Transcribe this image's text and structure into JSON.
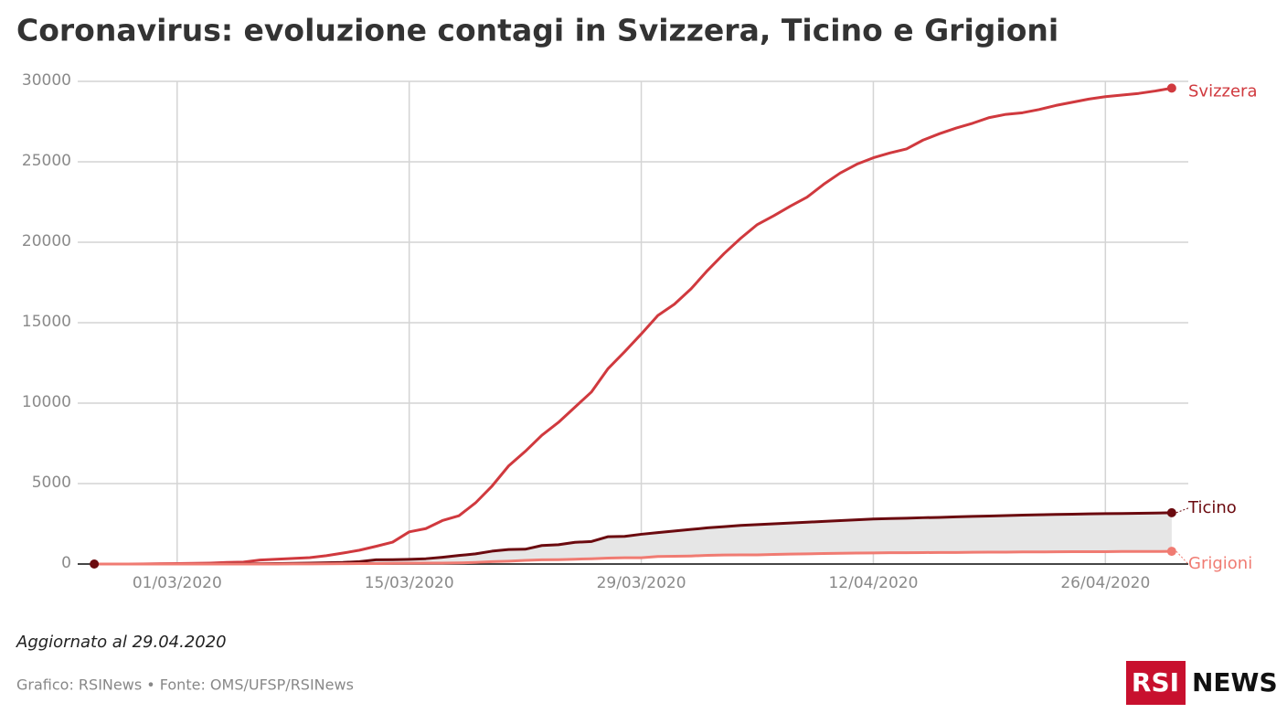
{
  "chart_data": {
    "type": "line",
    "title": "Coronavirus: evoluzione contagi in Svizzera, Ticino e Grigioni",
    "note": "Aggiornato al 29.04.2020",
    "source": "Grafico: RSINews • Fonte: OMS/UFSP/RSINews",
    "logo": [
      "RSI",
      "NEWS"
    ],
    "x": [
      "25/02/2020",
      "26/02/2020",
      "27/02/2020",
      "28/02/2020",
      "29/02/2020",
      "01/03/2020",
      "02/03/2020",
      "03/03/2020",
      "04/03/2020",
      "05/03/2020",
      "06/03/2020",
      "07/03/2020",
      "08/03/2020",
      "09/03/2020",
      "10/03/2020",
      "11/03/2020",
      "12/03/2020",
      "13/03/2020",
      "14/03/2020",
      "15/03/2020",
      "16/03/2020",
      "17/03/2020",
      "18/03/2020",
      "19/03/2020",
      "20/03/2020",
      "21/03/2020",
      "22/03/2020",
      "23/03/2020",
      "24/03/2020",
      "25/03/2020",
      "26/03/2020",
      "27/03/2020",
      "28/03/2020",
      "29/03/2020",
      "30/03/2020",
      "31/03/2020",
      "01/04/2020",
      "02/04/2020",
      "03/04/2020",
      "04/04/2020",
      "05/04/2020",
      "06/04/2020",
      "07/04/2020",
      "08/04/2020",
      "09/04/2020",
      "10/04/2020",
      "11/04/2020",
      "12/04/2020",
      "13/04/2020",
      "14/04/2020",
      "15/04/2020",
      "16/04/2020",
      "17/04/2020",
      "18/04/2020",
      "19/04/2020",
      "20/04/2020",
      "21/04/2020",
      "22/04/2020",
      "23/04/2020",
      "24/04/2020",
      "25/04/2020",
      "26/04/2020",
      "27/04/2020",
      "28/04/2020",
      "29/04/2020",
      "30/04/2020"
    ],
    "series": [
      {
        "name": "Svizzera",
        "color": "#d0393e",
        "values": [
          0,
          0,
          0,
          10,
          20,
          30,
          40,
          60,
          100,
          120,
          250,
          300,
          350,
          400,
          520,
          680,
          860,
          1100,
          1360,
          2000,
          2200,
          2700,
          3000,
          3800,
          4850,
          6100,
          7000,
          8000,
          8800,
          9750,
          10700,
          12150,
          13200,
          14300,
          15450,
          16150,
          17100,
          18250,
          19300,
          20250,
          21100,
          21650,
          22250,
          22800,
          23600,
          24300,
          24850,
          25250,
          25550,
          25800,
          26350,
          26750,
          27100,
          27400,
          27750,
          27950,
          28050,
          28250,
          28500,
          28700,
          28900,
          29050,
          29150,
          29250,
          29400,
          29580
        ]
      },
      {
        "name": "Ticino",
        "color": "#6b0a0f",
        "values": [
          0,
          0,
          0,
          1,
          1,
          1,
          1,
          5,
          10,
          15,
          20,
          30,
          40,
          60,
          80,
          100,
          150,
          260,
          270,
          290,
          330,
          420,
          530,
          630,
          800,
          900,
          920,
          1150,
          1200,
          1350,
          1400,
          1700,
          1720,
          1850,
          1950,
          2050,
          2150,
          2250,
          2320,
          2400,
          2450,
          2500,
          2550,
          2600,
          2650,
          2700,
          2750,
          2800,
          2830,
          2850,
          2880,
          2900,
          2930,
          2960,
          2980,
          3010,
          3040,
          3060,
          3080,
          3100,
          3120,
          3130,
          3140,
          3150,
          3170,
          3190
        ]
      },
      {
        "name": "Grigioni",
        "color": "#f07b72",
        "values": [
          0,
          0,
          0,
          0,
          0,
          0,
          0,
          0,
          0,
          0,
          0,
          2,
          5,
          10,
          15,
          20,
          25,
          30,
          40,
          50,
          55,
          60,
          70,
          100,
          150,
          180,
          230,
          260,
          270,
          300,
          330,
          370,
          390,
          390,
          470,
          480,
          500,
          540,
          560,
          570,
          570,
          600,
          620,
          630,
          650,
          670,
          680,
          690,
          700,
          700,
          710,
          720,
          720,
          730,
          740,
          740,
          750,
          750,
          760,
          770,
          770,
          770,
          780,
          780,
          780,
          790
        ]
      }
    ],
    "area_between": [
      "Ticino",
      "Grigioni"
    ],
    "area_color": "#e6e6e6",
    "xlim": [
      "24/02/2020",
      "01/05/2020"
    ],
    "xticks": [
      "01/03/2020",
      "15/03/2020",
      "29/03/2020",
      "12/04/2020",
      "26/04/2020"
    ],
    "ylim": [
      0,
      30000
    ],
    "yticks": [
      0,
      5000,
      10000,
      15000,
      20000,
      25000,
      30000
    ],
    "grid": true
  }
}
